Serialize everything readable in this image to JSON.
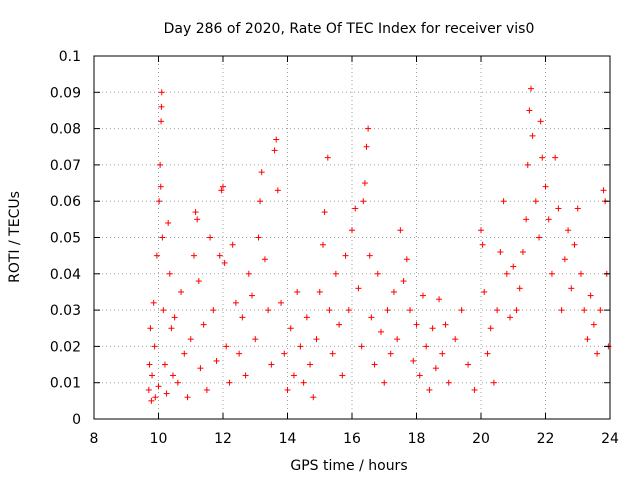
{
  "chart_data": {
    "type": "scatter",
    "title": "Day 286 of 2020, Rate Of TEC Index for receiver vis0",
    "xlabel": "GPS time / hours",
    "ylabel": "ROTI / TECUs",
    "xlim": [
      8,
      24
    ],
    "ylim": [
      0,
      0.1
    ],
    "xticks": [
      "8",
      "10",
      "12",
      "14",
      "16",
      "18",
      "20",
      "22",
      "24"
    ],
    "yticks": [
      "0",
      "0.01",
      "0.02",
      "0.03",
      "0.04",
      "0.05",
      "0.06",
      "0.07",
      "0.08",
      "0.09",
      "0.1"
    ],
    "grid": true,
    "marker": "plus",
    "color": "#ff0000",
    "series": [
      {
        "points": [
          [
            9.7,
            0.008
          ],
          [
            9.72,
            0.015
          ],
          [
            9.75,
            0.025
          ],
          [
            9.78,
            0.005
          ],
          [
            9.8,
            0.012
          ],
          [
            9.85,
            0.032
          ],
          [
            9.88,
            0.02
          ],
          [
            9.9,
            0.006
          ],
          [
            9.95,
            0.045
          ],
          [
            10.0,
            0.009
          ],
          [
            10.02,
            0.06
          ],
          [
            10.05,
            0.07
          ],
          [
            10.07,
            0.064
          ],
          [
            10.08,
            0.082
          ],
          [
            10.09,
            0.086
          ],
          [
            10.1,
            0.09
          ],
          [
            10.12,
            0.05
          ],
          [
            10.15,
            0.03
          ],
          [
            10.2,
            0.015
          ],
          [
            10.25,
            0.007
          ],
          [
            10.3,
            0.054
          ],
          [
            10.35,
            0.04
          ],
          [
            10.4,
            0.025
          ],
          [
            10.45,
            0.012
          ],
          [
            10.5,
            0.028
          ],
          [
            10.6,
            0.01
          ],
          [
            10.7,
            0.035
          ],
          [
            10.8,
            0.018
          ],
          [
            10.9,
            0.006
          ],
          [
            11.0,
            0.022
          ],
          [
            11.1,
            0.045
          ],
          [
            11.15,
            0.057
          ],
          [
            11.2,
            0.055
          ],
          [
            11.25,
            0.038
          ],
          [
            11.3,
            0.014
          ],
          [
            11.4,
            0.026
          ],
          [
            11.5,
            0.008
          ],
          [
            11.6,
            0.05
          ],
          [
            11.7,
            0.03
          ],
          [
            11.8,
            0.016
          ],
          [
            11.9,
            0.045
          ],
          [
            11.95,
            0.063
          ],
          [
            12.0,
            0.064
          ],
          [
            12.05,
            0.043
          ],
          [
            12.1,
            0.02
          ],
          [
            12.2,
            0.01
          ],
          [
            12.3,
            0.048
          ],
          [
            12.4,
            0.032
          ],
          [
            12.5,
            0.018
          ],
          [
            12.6,
            0.028
          ],
          [
            12.7,
            0.012
          ],
          [
            12.8,
            0.04
          ],
          [
            12.9,
            0.034
          ],
          [
            13.0,
            0.022
          ],
          [
            13.1,
            0.05
          ],
          [
            13.15,
            0.06
          ],
          [
            13.2,
            0.068
          ],
          [
            13.3,
            0.044
          ],
          [
            13.4,
            0.03
          ],
          [
            13.5,
            0.015
          ],
          [
            13.6,
            0.074
          ],
          [
            13.65,
            0.077
          ],
          [
            13.7,
            0.063
          ],
          [
            13.8,
            0.032
          ],
          [
            13.9,
            0.018
          ],
          [
            14.0,
            0.008
          ],
          [
            14.1,
            0.025
          ],
          [
            14.2,
            0.012
          ],
          [
            14.3,
            0.035
          ],
          [
            14.4,
            0.02
          ],
          [
            14.5,
            0.01
          ],
          [
            14.6,
            0.028
          ],
          [
            14.7,
            0.015
          ],
          [
            14.8,
            0.006
          ],
          [
            14.9,
            0.022
          ],
          [
            15.0,
            0.035
          ],
          [
            15.1,
            0.048
          ],
          [
            15.15,
            0.057
          ],
          [
            15.25,
            0.072
          ],
          [
            15.3,
            0.03
          ],
          [
            15.4,
            0.018
          ],
          [
            15.5,
            0.04
          ],
          [
            15.6,
            0.026
          ],
          [
            15.7,
            0.012
          ],
          [
            15.8,
            0.045
          ],
          [
            15.9,
            0.03
          ],
          [
            16.0,
            0.052
          ],
          [
            16.1,
            0.058
          ],
          [
            16.2,
            0.036
          ],
          [
            16.3,
            0.02
          ],
          [
            16.35,
            0.06
          ],
          [
            16.4,
            0.065
          ],
          [
            16.45,
            0.075
          ],
          [
            16.5,
            0.08
          ],
          [
            16.55,
            0.045
          ],
          [
            16.6,
            0.028
          ],
          [
            16.7,
            0.015
          ],
          [
            16.8,
            0.04
          ],
          [
            16.9,
            0.024
          ],
          [
            17.0,
            0.01
          ],
          [
            17.1,
            0.03
          ],
          [
            17.2,
            0.018
          ],
          [
            17.3,
            0.035
          ],
          [
            17.4,
            0.022
          ],
          [
            17.5,
            0.052
          ],
          [
            17.6,
            0.038
          ],
          [
            17.7,
            0.044
          ],
          [
            17.8,
            0.03
          ],
          [
            17.9,
            0.016
          ],
          [
            18.0,
            0.026
          ],
          [
            18.1,
            0.012
          ],
          [
            18.2,
            0.034
          ],
          [
            18.3,
            0.02
          ],
          [
            18.4,
            0.008
          ],
          [
            18.5,
            0.025
          ],
          [
            18.6,
            0.014
          ],
          [
            18.7,
            0.033
          ],
          [
            18.8,
            0.018
          ],
          [
            18.9,
            0.026
          ],
          [
            19.0,
            0.01
          ],
          [
            19.2,
            0.022
          ],
          [
            19.4,
            0.03
          ],
          [
            19.6,
            0.015
          ],
          [
            19.8,
            0.008
          ],
          [
            20.0,
            0.052
          ],
          [
            20.05,
            0.048
          ],
          [
            20.1,
            0.035
          ],
          [
            20.2,
            0.018
          ],
          [
            20.3,
            0.025
          ],
          [
            20.4,
            0.01
          ],
          [
            20.5,
            0.03
          ],
          [
            20.6,
            0.046
          ],
          [
            20.7,
            0.06
          ],
          [
            20.8,
            0.04
          ],
          [
            20.9,
            0.028
          ],
          [
            21.0,
            0.042
          ],
          [
            21.1,
            0.03
          ],
          [
            21.2,
            0.036
          ],
          [
            21.3,
            0.046
          ],
          [
            21.4,
            0.055
          ],
          [
            21.45,
            0.07
          ],
          [
            21.5,
            0.085
          ],
          [
            21.55,
            0.091
          ],
          [
            21.6,
            0.078
          ],
          [
            21.7,
            0.06
          ],
          [
            21.8,
            0.05
          ],
          [
            21.85,
            0.082
          ],
          [
            21.9,
            0.072
          ],
          [
            22.0,
            0.064
          ],
          [
            22.1,
            0.055
          ],
          [
            22.2,
            0.04
          ],
          [
            22.3,
            0.072
          ],
          [
            22.4,
            0.058
          ],
          [
            22.5,
            0.03
          ],
          [
            22.6,
            0.044
          ],
          [
            22.7,
            0.052
          ],
          [
            22.8,
            0.036
          ],
          [
            22.9,
            0.048
          ],
          [
            23.0,
            0.058
          ],
          [
            23.1,
            0.04
          ],
          [
            23.2,
            0.03
          ],
          [
            23.3,
            0.022
          ],
          [
            23.4,
            0.034
          ],
          [
            23.5,
            0.026
          ],
          [
            23.6,
            0.018
          ],
          [
            23.7,
            0.03
          ],
          [
            23.8,
            0.063
          ],
          [
            23.85,
            0.06
          ],
          [
            23.9,
            0.04
          ],
          [
            23.95,
            0.02
          ]
        ]
      }
    ]
  }
}
